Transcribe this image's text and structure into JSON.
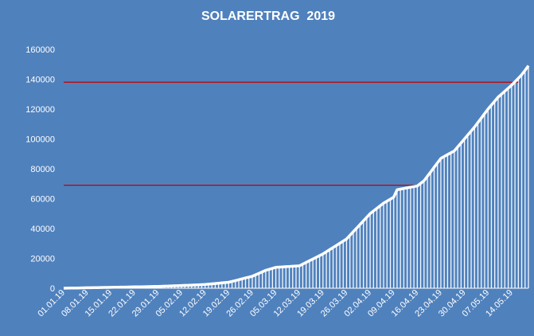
{
  "chart_data": {
    "type": "area",
    "title": "SOLARERTRAG  2019",
    "xlabel": "",
    "ylabel": "",
    "ylim": [
      0,
      160000
    ],
    "yticks": [
      "0",
      "20000",
      "40000",
      "60000",
      "80000",
      "100000",
      "120000",
      "140000",
      "160000"
    ],
    "xticks": [
      "01.01.19",
      "08.01.19",
      "15.01.19",
      "22.01.19",
      "29.01.19",
      "05.02.19",
      "12.02.19",
      "19.02.19",
      "26.02.19",
      "05.03.19",
      "12.03.19",
      "19.03.19",
      "26.03.19",
      "02.04.19",
      "09.04.19",
      "16.04.19",
      "23.04.19",
      "30.04.19",
      "07.05.19",
      "14.05.19"
    ],
    "x_start": "2019-01-01",
    "x_end": "2019-05-19",
    "series": [
      {
        "points": [
          [
            "2019-01-01",
            0
          ],
          [
            "2019-01-08",
            300
          ],
          [
            "2019-01-15",
            600
          ],
          [
            "2019-01-22",
            900
          ],
          [
            "2019-01-29",
            1200
          ],
          [
            "2019-02-05",
            1800
          ],
          [
            "2019-02-12",
            2500
          ],
          [
            "2019-02-19",
            4000
          ],
          [
            "2019-02-26",
            8000
          ],
          [
            "2019-03-02",
            12000
          ],
          [
            "2019-03-05",
            14000
          ],
          [
            "2019-03-12",
            15000
          ],
          [
            "2019-03-19",
            23000
          ],
          [
            "2019-03-26",
            33000
          ],
          [
            "2019-04-02",
            50000
          ],
          [
            "2019-04-06",
            57000
          ],
          [
            "2019-04-09",
            61000
          ],
          [
            "2019-04-10",
            66000
          ],
          [
            "2019-04-16",
            68500
          ],
          [
            "2019-04-18",
            72000
          ],
          [
            "2019-04-23",
            87000
          ],
          [
            "2019-04-27",
            92000
          ],
          [
            "2019-04-30",
            100000
          ],
          [
            "2019-05-03",
            108000
          ],
          [
            "2019-05-07",
            120000
          ],
          [
            "2019-05-10",
            128000
          ],
          [
            "2019-05-14",
            136000
          ],
          [
            "2019-05-17",
            143000
          ],
          [
            "2019-05-19",
            149000
          ]
        ]
      }
    ],
    "reference_lines": [
      {
        "y": 69000,
        "x_from": "2019-01-01",
        "x_to": "2019-04-16",
        "color": "#c00000"
      },
      {
        "y": 138000,
        "x_from": "2019-01-01",
        "x_to": "2019-05-16",
        "color": "#c00000"
      }
    ],
    "grid": false
  },
  "colors": {
    "background": "#4f81bd",
    "line": "#ffffff",
    "bars": "#ffffff",
    "reference": "#c00000"
  }
}
